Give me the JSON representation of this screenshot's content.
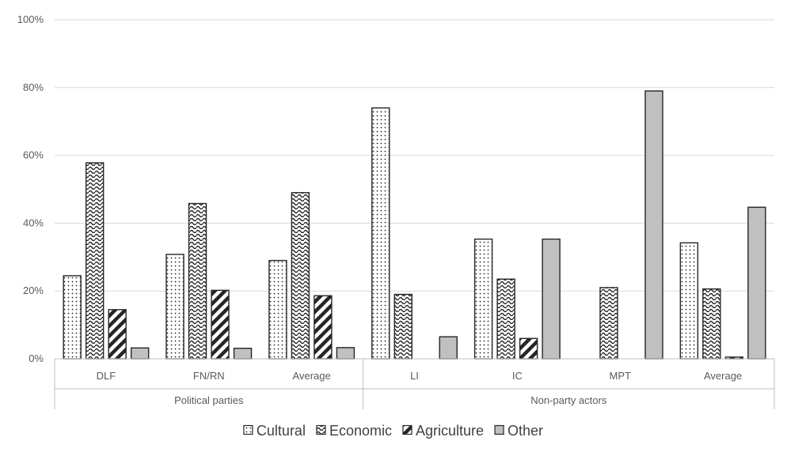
{
  "chart_data": {
    "type": "bar",
    "title": "",
    "xlabel": "",
    "ylabel": "",
    "ylim": [
      0,
      100
    ],
    "yticks": [
      "0%",
      "20%",
      "40%",
      "60%",
      "80%",
      "100%"
    ],
    "ytick_values": [
      0,
      20,
      40,
      60,
      80,
      100
    ],
    "grid": true,
    "legend_position": "bottom",
    "groups": [
      {
        "label": "Political parties",
        "categories": [
          "DLF",
          "FN/RN",
          "Average"
        ]
      },
      {
        "label": "Non-party actors",
        "categories": [
          "LI",
          "IC",
          "MPT",
          "Average"
        ]
      }
    ],
    "categories": [
      "DLF",
      "FN/RN",
      "Average",
      "LI",
      "IC",
      "MPT",
      "Average"
    ],
    "series": [
      {
        "name": "Cultural",
        "pattern": "dots",
        "values": [
          24.5,
          30.8,
          29.0,
          74.0,
          35.3,
          0,
          34.2
        ]
      },
      {
        "name": "Economic",
        "pattern": "waves",
        "values": [
          57.8,
          45.8,
          49.0,
          19.0,
          23.5,
          21.0,
          20.6
        ]
      },
      {
        "name": "Agriculture",
        "pattern": "diagonal",
        "values": [
          14.5,
          20.2,
          18.6,
          0,
          6.0,
          0,
          0.5
        ]
      },
      {
        "name": "Other",
        "pattern": "solid",
        "values": [
          3.2,
          3.1,
          3.3,
          6.5,
          35.3,
          79.0,
          44.7
        ]
      }
    ],
    "colors": {
      "other_fill": "#c0c0c0",
      "stroke": "#262626",
      "grid": "#d9d9d9",
      "axis": "#bfbfbf"
    }
  }
}
